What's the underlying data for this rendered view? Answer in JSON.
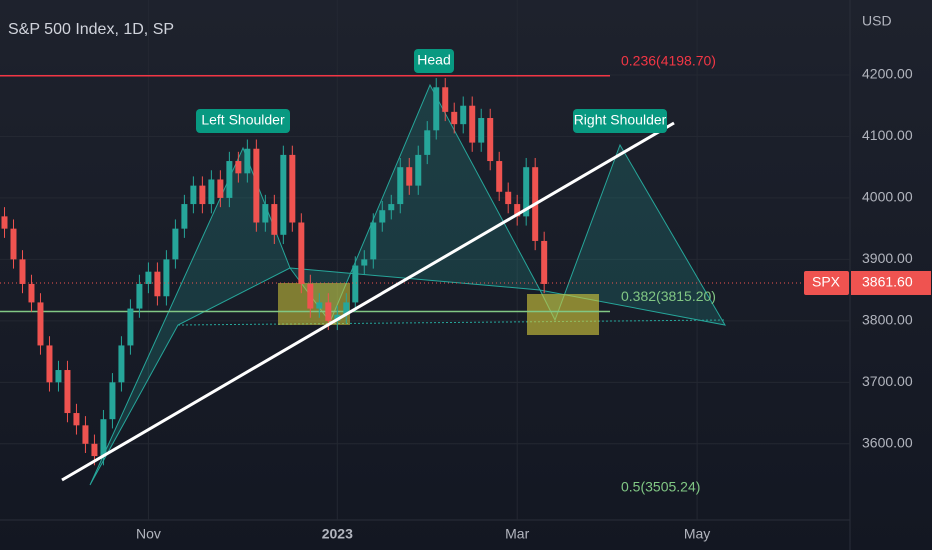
{
  "chart_data": {
    "type": "candlestick",
    "title": "S&P 500 Index, 1D, SP",
    "currency": "USD",
    "symbol": "SPX",
    "last_price": {
      "value": 3861.6,
      "label": "3861.60"
    },
    "x": [
      0,
      2,
      4,
      6,
      8,
      10,
      12,
      14,
      16,
      18,
      20,
      22,
      24,
      26,
      28,
      30,
      32,
      34,
      36,
      38,
      40,
      42,
      44,
      46,
      48,
      50,
      52,
      54,
      56,
      58,
      60,
      62,
      64,
      66,
      68,
      70,
      72,
      74,
      76,
      78,
      80,
      82,
      84,
      86,
      88,
      90,
      92,
      94,
      96,
      98,
      100,
      102,
      104,
      106,
      108,
      110,
      112,
      114,
      116,
      118,
      120
    ],
    "open": [
      3970,
      3950,
      3900,
      3860,
      3830,
      3760,
      3700,
      3720,
      3650,
      3630,
      3600,
      3580,
      3640,
      3700,
      3760,
      3820,
      3860,
      3880,
      3840,
      3900,
      3950,
      3990,
      4020,
      3990,
      4030,
      4000,
      4060,
      4040,
      4080,
      3960,
      3990,
      3940,
      4070,
      3960,
      3860,
      3820,
      3830,
      3800,
      3810,
      3830,
      3890,
      3900,
      3960,
      3980,
      3990,
      4050,
      4020,
      4070,
      4110,
      4180,
      4140,
      4120,
      4150,
      4090,
      4130,
      4060,
      4010,
      3990,
      3970,
      4050,
      3930
    ],
    "high": [
      3985,
      3965,
      3915,
      3875,
      3845,
      3775,
      3735,
      3735,
      3665,
      3645,
      3615,
      3655,
      3715,
      3775,
      3835,
      3875,
      3895,
      3895,
      3915,
      3965,
      4005,
      4035,
      4035,
      4045,
      4045,
      4075,
      4075,
      4095,
      4095,
      4005,
      4005,
      4085,
      4085,
      3975,
      3875,
      3845,
      3845,
      3825,
      3845,
      3905,
      3915,
      3975,
      3995,
      4005,
      4065,
      4065,
      4085,
      4125,
      4195,
      4195,
      4155,
      4165,
      4165,
      4145,
      4145,
      4075,
      4025,
      4005,
      4065,
      4065,
      3945
    ],
    "low": [
      3935,
      3885,
      3845,
      3815,
      3745,
      3685,
      3685,
      3635,
      3615,
      3585,
      3565,
      3565,
      3625,
      3685,
      3745,
      3805,
      3845,
      3825,
      3825,
      3885,
      3935,
      3975,
      3975,
      3975,
      3985,
      3985,
      4025,
      4025,
      3945,
      3945,
      3925,
      3925,
      3945,
      3845,
      3805,
      3805,
      3785,
      3785,
      3795,
      3815,
      3875,
      3885,
      3945,
      3965,
      3975,
      4005,
      4005,
      4055,
      4095,
      4125,
      4105,
      4105,
      4075,
      4075,
      4045,
      3995,
      3975,
      3955,
      3955,
      3915,
      3845
    ],
    "close": [
      3950,
      3900,
      3860,
      3830,
      3760,
      3700,
      3720,
      3650,
      3630,
      3600,
      3580,
      3640,
      3700,
      3760,
      3820,
      3860,
      3880,
      3840,
      3900,
      3950,
      3990,
      4020,
      3990,
      4030,
      4000,
      4060,
      4040,
      4080,
      3960,
      3990,
      3940,
      4070,
      3960,
      3860,
      3820,
      3830,
      3800,
      3810,
      3830,
      3890,
      3900,
      3960,
      3980,
      3990,
      4050,
      4020,
      4070,
      4110,
      4180,
      4140,
      4120,
      4150,
      4090,
      4130,
      4060,
      4010,
      3990,
      3970,
      4050,
      3930,
      3860
    ],
    "up_color": "#26a69a",
    "down_color": "#ef5350",
    "xlim": [
      -1,
      188
    ],
    "xticks": [
      {
        "value": 32,
        "label": "Nov"
      },
      {
        "value": 74,
        "label": "2023"
      },
      {
        "value": 114,
        "label": "Mar"
      },
      {
        "value": 154,
        "label": "May"
      }
    ],
    "ylim": [
      3476,
      4322
    ],
    "yticks": [
      {
        "value": 3600,
        "label": "3600.00"
      },
      {
        "value": 3700,
        "label": "3700.00"
      },
      {
        "value": 3800,
        "label": "3800.00"
      },
      {
        "value": 3900,
        "label": "3900.00"
      },
      {
        "value": 4000,
        "label": "4000.00"
      },
      {
        "value": 4100,
        "label": "4100.00"
      },
      {
        "value": 4200,
        "label": "4200.00"
      }
    ],
    "fib_levels": [
      {
        "label": "0.236(4198.70)",
        "level": 4198.7,
        "color": "#f23645"
      },
      {
        "label": "0.382(3815.20)",
        "level": 3815.2,
        "color": "#81c784"
      },
      {
        "label": "0.5(3505.24)",
        "level": 3505.24,
        "color": "#81c784"
      }
    ],
    "annotations": [
      "Left Shoulder",
      "Head",
      "Right Shoulder"
    ]
  }
}
